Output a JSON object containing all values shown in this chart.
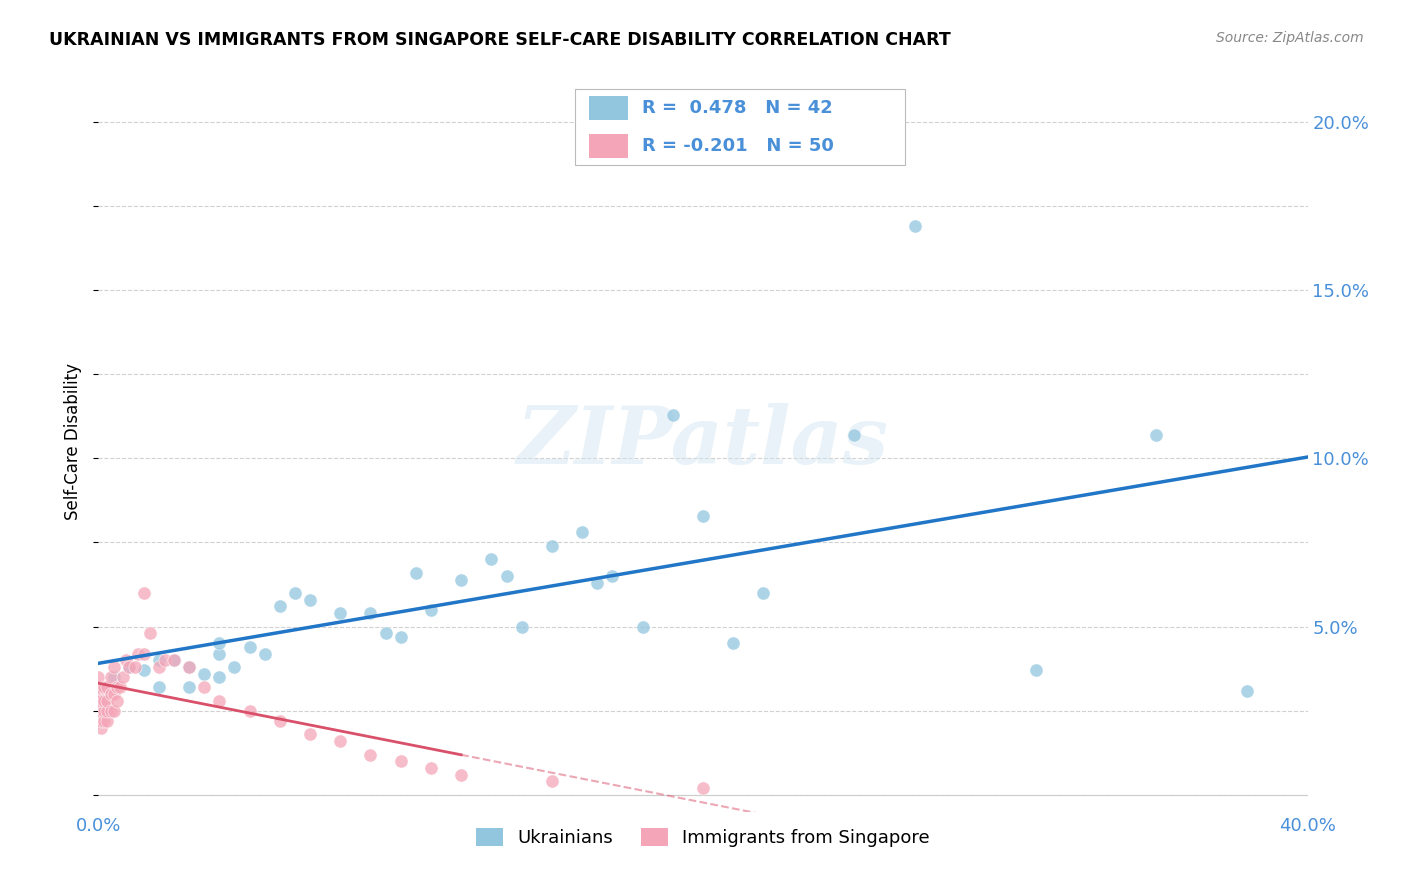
{
  "title": "UKRAINIAN VS IMMIGRANTS FROM SINGAPORE SELF-CARE DISABILITY CORRELATION CHART",
  "source": "Source: ZipAtlas.com",
  "ylabel": "Self-Care Disability",
  "xlim": [
    0.0,
    0.4
  ],
  "ylim": [
    -0.005,
    0.215
  ],
  "xticks": [
    0.0,
    0.1,
    0.2,
    0.3,
    0.4
  ],
  "yticks": [
    0.0,
    0.05,
    0.1,
    0.15,
    0.2
  ],
  "xticklabels": [
    "0.0%",
    "",
    "",
    "",
    "40.0%"
  ],
  "yticklabels_right": [
    "",
    "5.0%",
    "10.0%",
    "15.0%",
    "20.0%"
  ],
  "legend1_label": "Ukrainians",
  "legend2_label": "Immigrants from Singapore",
  "r1": 0.478,
  "n1": 42,
  "r2": -0.201,
  "n2": 50,
  "blue_color": "#92c5de",
  "pink_color": "#f4a6b8",
  "line_blue": "#2176c7",
  "line_pink": "#d9506a",
  "watermark_text": "ZIPatlas",
  "axis_label_color": "#4a90d9",
  "blue_scatter_x": [
    0.005,
    0.01,
    0.015,
    0.02,
    0.02,
    0.025,
    0.03,
    0.03,
    0.035,
    0.04,
    0.04,
    0.04,
    0.045,
    0.05,
    0.055,
    0.06,
    0.065,
    0.07,
    0.08,
    0.09,
    0.095,
    0.1,
    0.105,
    0.11,
    0.12,
    0.13,
    0.135,
    0.14,
    0.15,
    0.16,
    0.165,
    0.17,
    0.18,
    0.19,
    0.2,
    0.21,
    0.22,
    0.25,
    0.27,
    0.31,
    0.35,
    0.38
  ],
  "blue_scatter_y": [
    0.035,
    0.038,
    0.037,
    0.04,
    0.032,
    0.04,
    0.038,
    0.032,
    0.036,
    0.042,
    0.045,
    0.035,
    0.038,
    0.044,
    0.042,
    0.056,
    0.06,
    0.058,
    0.054,
    0.054,
    0.048,
    0.047,
    0.066,
    0.055,
    0.064,
    0.07,
    0.065,
    0.05,
    0.074,
    0.078,
    0.063,
    0.065,
    0.05,
    0.113,
    0.083,
    0.045,
    0.06,
    0.107,
    0.169,
    0.037,
    0.107,
    0.031
  ],
  "pink_scatter_x": [
    0.0,
    0.0,
    0.0,
    0.0,
    0.0,
    0.001,
    0.001,
    0.001,
    0.001,
    0.002,
    0.002,
    0.002,
    0.002,
    0.003,
    0.003,
    0.003,
    0.003,
    0.004,
    0.004,
    0.004,
    0.005,
    0.005,
    0.005,
    0.006,
    0.006,
    0.007,
    0.008,
    0.009,
    0.01,
    0.012,
    0.013,
    0.015,
    0.015,
    0.017,
    0.02,
    0.022,
    0.025,
    0.03,
    0.035,
    0.04,
    0.05,
    0.06,
    0.07,
    0.08,
    0.09,
    0.1,
    0.11,
    0.12,
    0.15,
    0.2
  ],
  "pink_scatter_y": [
    0.025,
    0.028,
    0.03,
    0.032,
    0.035,
    0.02,
    0.022,
    0.025,
    0.028,
    0.022,
    0.025,
    0.028,
    0.032,
    0.022,
    0.025,
    0.028,
    0.032,
    0.025,
    0.03,
    0.035,
    0.025,
    0.03,
    0.038,
    0.028,
    0.032,
    0.032,
    0.035,
    0.04,
    0.038,
    0.038,
    0.042,
    0.042,
    0.06,
    0.048,
    0.038,
    0.04,
    0.04,
    0.038,
    0.032,
    0.028,
    0.025,
    0.022,
    0.018,
    0.016,
    0.012,
    0.01,
    0.008,
    0.006,
    0.004,
    0.002
  ]
}
